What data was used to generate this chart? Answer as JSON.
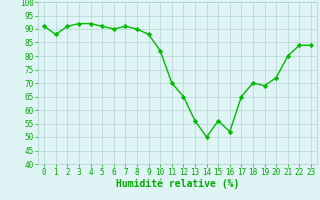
{
  "x": [
    0,
    1,
    2,
    3,
    4,
    5,
    6,
    7,
    8,
    9,
    10,
    11,
    12,
    13,
    14,
    15,
    16,
    17,
    18,
    19,
    20,
    21,
    22,
    23
  ],
  "y": [
    91,
    88,
    91,
    92,
    92,
    91,
    90,
    91,
    90,
    88,
    82,
    70,
    65,
    56,
    50,
    56,
    52,
    65,
    70,
    69,
    72,
    80,
    84,
    84
  ],
  "line_color": "#00bb00",
  "marker": "D",
  "marker_size": 2.2,
  "linewidth": 1.0,
  "bg_color": "#dff4f4",
  "grid_color": "#aacccc",
  "xlabel": "Humidité relative (%)",
  "xlabel_color": "#00aa00",
  "xlabel_fontsize": 7,
  "tick_color": "#00aa00",
  "tick_fontsize": 5.5,
  "ylim": [
    40,
    100
  ],
  "xlim": [
    -0.5,
    23.5
  ],
  "yticks": [
    40,
    45,
    50,
    55,
    60,
    65,
    70,
    75,
    80,
    85,
    90,
    95,
    100
  ],
  "xticks": [
    0,
    1,
    2,
    3,
    4,
    5,
    6,
    7,
    8,
    9,
    10,
    11,
    12,
    13,
    14,
    15,
    16,
    17,
    18,
    19,
    20,
    21,
    22,
    23
  ]
}
